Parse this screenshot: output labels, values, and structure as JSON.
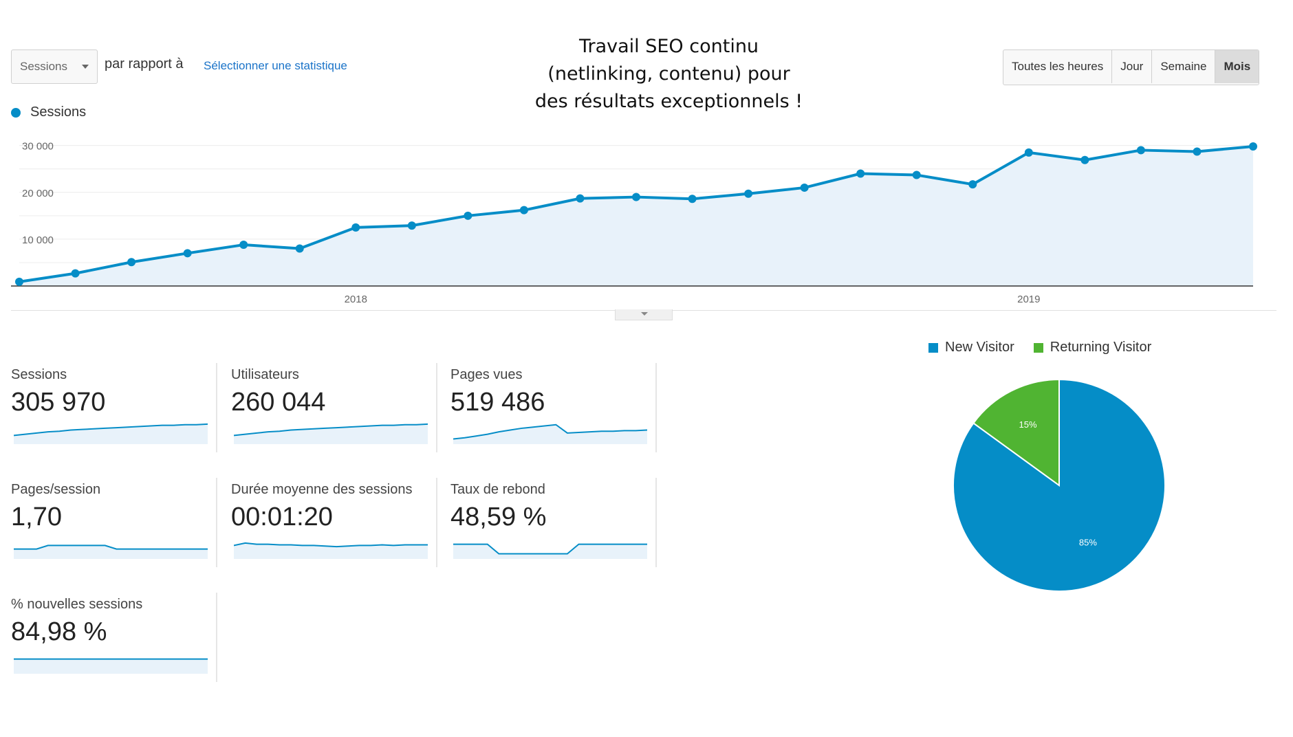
{
  "controls": {
    "metric_select": "Sessions",
    "compare_label": "par rapport à",
    "select_stat_link": "Sélectionner une statistique",
    "granularity": [
      {
        "label": "Toutes les heures",
        "active": false
      },
      {
        "label": "Jour",
        "active": false
      },
      {
        "label": "Semaine",
        "active": false
      },
      {
        "label": "Mois",
        "active": true
      }
    ]
  },
  "headline": [
    "Travail SEO continu",
    "(netlinking, contenu) pour",
    "des résultats exceptionnels !"
  ],
  "colors": {
    "primary": "#058dc7",
    "secondary": "#50b432",
    "area_fill": "#e8f2fa"
  },
  "chart_data": [
    {
      "type": "area",
      "series": [
        {
          "name": "Sessions",
          "values": [
            900,
            2700,
            5100,
            7000,
            8800,
            8000,
            12500,
            12900,
            15000,
            16200,
            18700,
            19000,
            18600,
            19700,
            21000,
            24000,
            23700,
            21700,
            28500,
            26900,
            29000,
            28700,
            29800
          ]
        }
      ],
      "x_tick_labels": [
        {
          "label": "2018",
          "index": 6
        },
        {
          "label": "2019",
          "index": 18
        }
      ],
      "y_tick_labels": [
        "30 000",
        "20 000",
        "10 000"
      ],
      "ylim": [
        0,
        32000
      ],
      "grid": true
    },
    {
      "type": "pie",
      "categories": [
        "New Visitor",
        "Returning Visitor"
      ],
      "values": [
        85,
        15
      ],
      "slice_labels": [
        "85%",
        "15%"
      ],
      "legend": "top"
    }
  ],
  "metrics": [
    {
      "label": "Sessions",
      "value": "305 970",
      "spark": [
        10,
        12,
        14,
        16,
        17,
        19,
        20,
        21,
        22,
        23,
        24,
        25,
        26,
        27,
        27,
        28,
        28,
        29
      ]
    },
    {
      "label": "Utilisateurs",
      "value": "260 044",
      "spark": [
        10,
        12,
        14,
        16,
        17,
        19,
        20,
        21,
        22,
        23,
        24,
        25,
        26,
        27,
        27,
        28,
        28,
        29
      ]
    },
    {
      "label": "Pages vues",
      "value": "519 486",
      "spark": [
        4,
        6,
        9,
        12,
        16,
        19,
        22,
        24,
        26,
        28,
        14,
        15,
        16,
        17,
        17,
        18,
        18,
        19
      ]
    },
    {
      "label": "Pages/session",
      "value": "1,70",
      "spark": [
        12,
        12,
        12,
        18,
        18,
        18,
        18,
        18,
        18,
        12,
        12,
        12,
        12,
        12,
        12,
        12,
        12,
        12
      ]
    },
    {
      "label": "Durée moyenne des sessions",
      "value": "00:01:20",
      "spark": [
        18,
        22,
        20,
        20,
        19,
        19,
        18,
        18,
        17,
        16,
        17,
        18,
        18,
        19,
        18,
        19,
        19,
        19
      ]
    },
    {
      "label": "Taux de rebond",
      "value": "48,59 %",
      "spark": [
        20,
        20,
        20,
        20,
        4,
        4,
        4,
        4,
        4,
        4,
        4,
        20,
        20,
        20,
        20,
        20,
        20,
        20
      ]
    },
    {
      "label": "% nouvelles sessions",
      "value": "84,98 %",
      "spark": [
        20,
        20,
        20,
        20,
        20,
        20,
        20,
        20,
        20,
        20,
        20,
        20,
        20,
        20,
        20,
        20,
        20,
        20
      ]
    }
  ]
}
